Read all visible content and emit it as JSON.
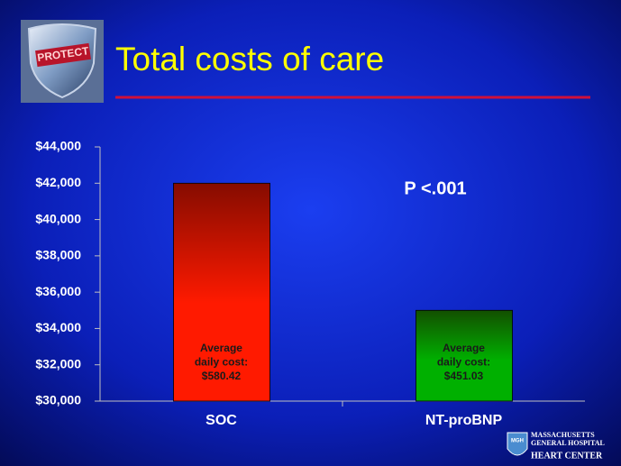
{
  "chart_data": {
    "type": "bar",
    "title": "Total costs of care",
    "categories": [
      "SOC",
      "NT-proBNP"
    ],
    "values": [
      42000,
      35000
    ],
    "colors": [
      "#ff1a00",
      "#00b000"
    ],
    "ylim": [
      30000,
      44000
    ],
    "yticks": [
      {
        "value": 30000,
        "label": "$30,000"
      },
      {
        "value": 32000,
        "label": "$32,000"
      },
      {
        "value": 34000,
        "label": "$34,000"
      },
      {
        "value": 36000,
        "label": "$36,000"
      },
      {
        "value": 38000,
        "label": "$38,000"
      },
      {
        "value": 40000,
        "label": "$40,000"
      },
      {
        "value": 42000,
        "label": "$42,000"
      },
      {
        "value": 44000,
        "label": "$44,000"
      }
    ],
    "annotations": [
      "P <.001"
    ],
    "bar_notes": [
      [
        "Average",
        "daily cost:",
        "$580.42"
      ],
      [
        "Average",
        "daily cost:",
        "$451.03"
      ]
    ]
  },
  "slide": {
    "badge": "PROTECT",
    "seal": "MGH",
    "hospital": [
      "MASSACHUSETTS",
      "GENERAL HOSPITAL"
    ],
    "department": "Heart Center"
  }
}
